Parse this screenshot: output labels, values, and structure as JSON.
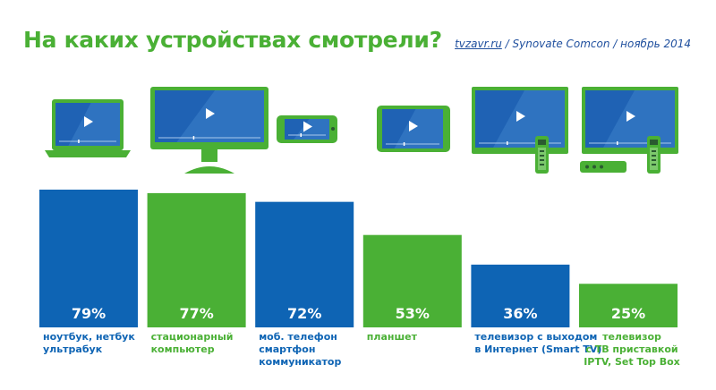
{
  "title": "На каких устройствах смотрели?",
  "source": {
    "site": "tvzavr.ru",
    "rest": " / Synovate Comcon / ноябрь 2014"
  },
  "colors": {
    "blue": "#0e64b4",
    "green": "#4ab035",
    "screen": "#1f62b4",
    "title": "#4ab035"
  },
  "chart_data": {
    "type": "bar",
    "categories": [
      [
        "ноутбук, нетбук",
        "ультрабук"
      ],
      [
        "стационарный",
        "компьютер"
      ],
      [
        "моб. телефон",
        "смартфон",
        "коммуникатор"
      ],
      [
        "планшет"
      ],
      [
        "телевизор с выходом",
        "в Интернет (Smart TV)"
      ],
      [
        "телевизор",
        "с ТВ приставкой",
        "IPTV, Set Top Box"
      ]
    ],
    "values": [
      79,
      77,
      72,
      53,
      36,
      25
    ],
    "value_labels": [
      "79%",
      "77%",
      "72%",
      "53%",
      "36%",
      "25%"
    ],
    "bar_colors": [
      "blue",
      "green",
      "blue",
      "green",
      "blue",
      "green"
    ],
    "icons": [
      "laptop-icon",
      "desktop-monitor-icon",
      "smartphone-icon",
      "tablet-icon",
      "smart-tv-icon",
      "tv-settop-box-icon"
    ],
    "ylim": [
      0,
      79
    ]
  }
}
